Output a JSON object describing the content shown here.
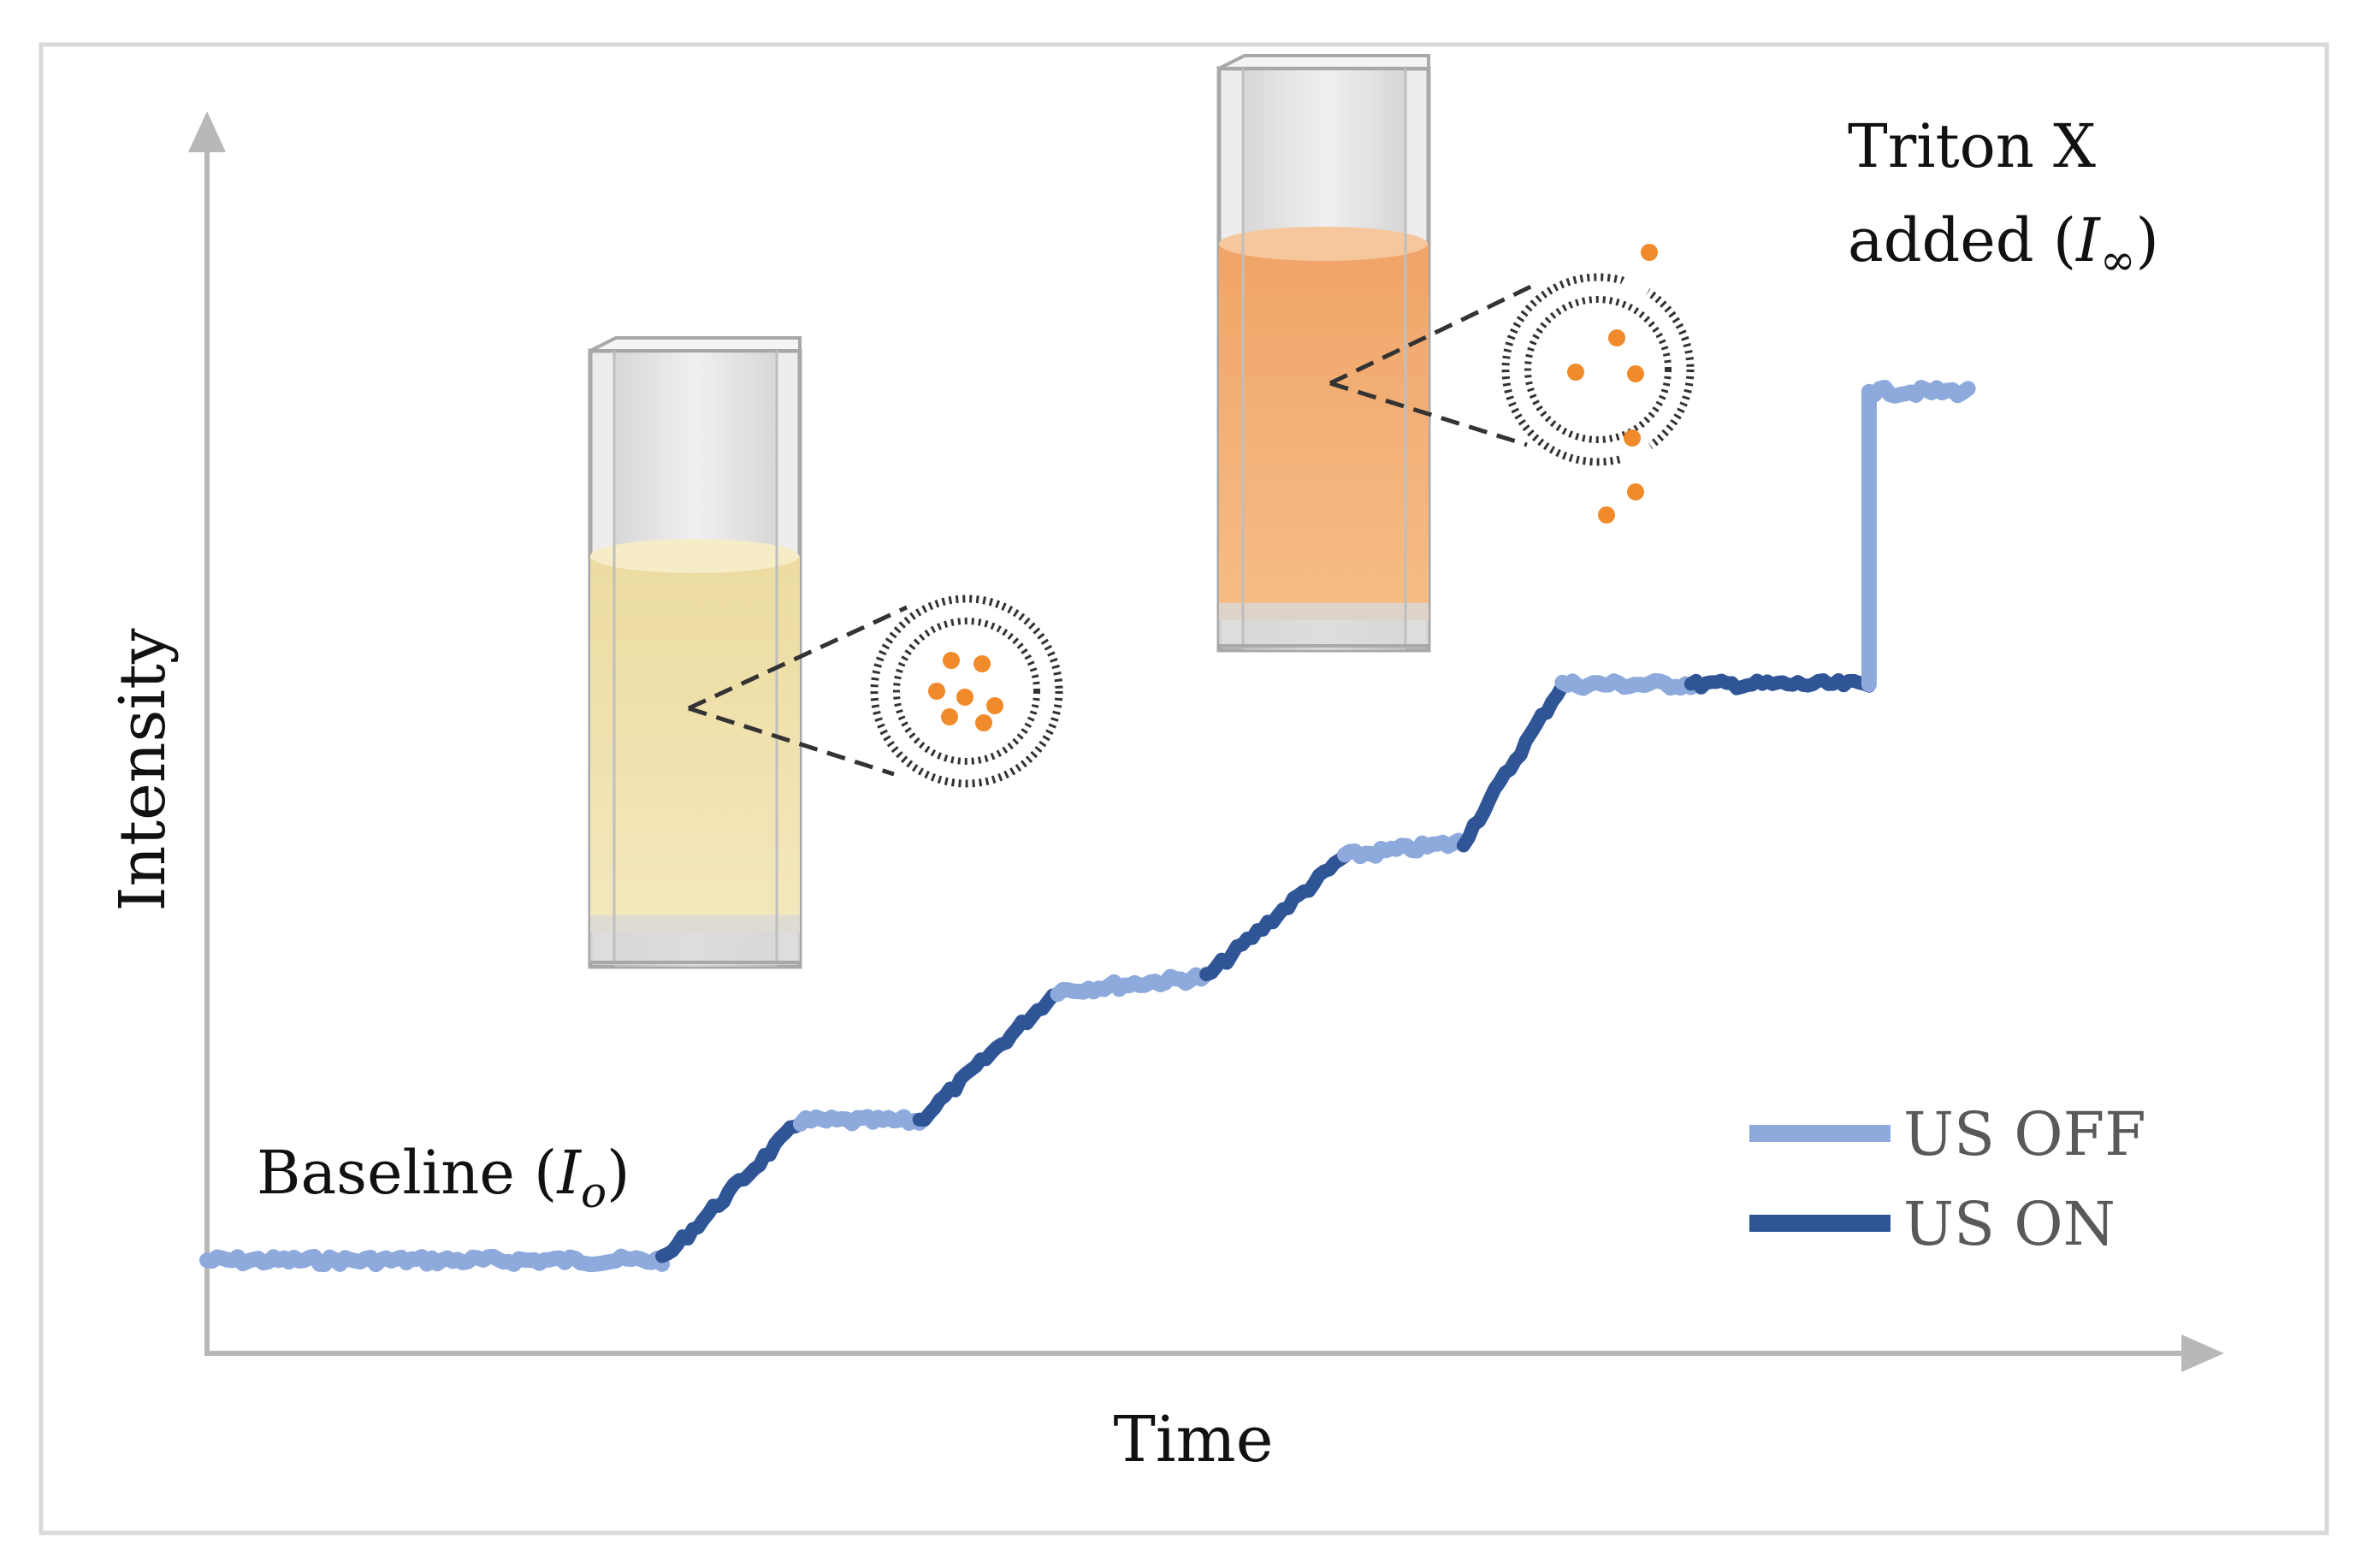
{
  "chart_data": {
    "type": "line",
    "title": "",
    "xlabel": "Time",
    "ylabel": "Intensity",
    "annotations": {
      "baseline": {
        "text": "Baseline (",
        "symbol": "I",
        "subscript": "o",
        "close": ")"
      },
      "triton_line1": "Triton X",
      "triton_line2": {
        "text": "added (",
        "symbol": "I",
        "subscript": "∞",
        "close": ")"
      }
    },
    "legend": {
      "placement": "bottom-right",
      "entries": [
        {
          "label": "US OFF",
          "color": "#8eaadc"
        },
        {
          "label": "US ON",
          "color": "#2f5597"
        }
      ]
    },
    "segments": [
      {
        "state": "off",
        "x": [
          0.0,
          23.0
        ],
        "y": [
          0.0,
          0.0
        ]
      },
      {
        "state": "on",
        "x": [
          23.0,
          30.0
        ],
        "y": [
          0.0,
          15.0
        ]
      },
      {
        "state": "off",
        "x": [
          30.0,
          36.0
        ],
        "y": [
          15.0,
          15.0
        ]
      },
      {
        "state": "on",
        "x": [
          36.0,
          43.0
        ],
        "y": [
          15.0,
          29.0
        ]
      },
      {
        "state": "off",
        "x": [
          43.0,
          50.5
        ],
        "y": [
          29.0,
          30.5
        ]
      },
      {
        "state": "on",
        "x": [
          50.5,
          57.5
        ],
        "y": [
          30.5,
          43.5
        ]
      },
      {
        "state": "off",
        "x": [
          57.5,
          63.5
        ],
        "y": [
          43.5,
          45.0
        ]
      },
      {
        "state": "on",
        "x": [
          63.5,
          68.5
        ],
        "y": [
          45.0,
          62.0
        ]
      },
      {
        "state": "off",
        "x": [
          68.5,
          75.0
        ],
        "y": [
          62.0,
          62.0
        ]
      },
      {
        "state": "on",
        "x": [
          75.0,
          84.0
        ],
        "y": [
          62.0,
          62.0
        ]
      },
      {
        "state": "off",
        "x": [
          84.0,
          84.0,
          89.0
        ],
        "y": [
          62.0,
          93.5,
          93.5
        ]
      }
    ],
    "xlim": [
      0,
      100
    ],
    "ylim": [
      -10,
      120
    ],
    "colors": {
      "off": "#8eaadc",
      "on": "#2f5597",
      "axis": "#b8b8b8",
      "frame": "#d9d9d9"
    }
  }
}
